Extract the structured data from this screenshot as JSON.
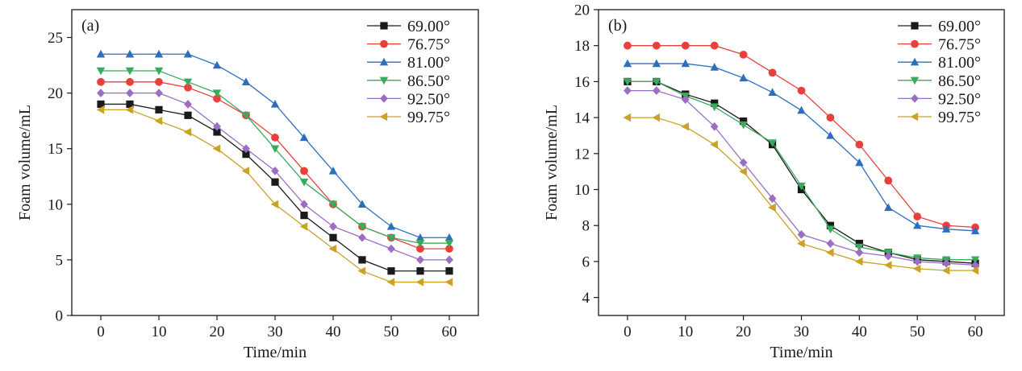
{
  "chart_data": [
    {
      "type": "line",
      "panel_label": "(a)",
      "xlabel": "Time/min",
      "ylabel": "Foam volume/mL",
      "xlim": [
        -5,
        65
      ],
      "ylim": [
        0,
        27.5
      ],
      "xticks": [
        0,
        10,
        20,
        30,
        40,
        50,
        60
      ],
      "yticks": [
        0,
        5,
        10,
        15,
        20,
        25
      ],
      "grid": false,
      "legend_position": "top-right",
      "x": [
        0,
        5,
        10,
        15,
        20,
        25,
        30,
        35,
        40,
        45,
        50,
        55,
        60
      ],
      "series": [
        {
          "name": "69.00°",
          "marker": "square",
          "color": "#1a1a1a",
          "values": [
            19,
            19,
            18.5,
            18,
            16.5,
            14.5,
            12,
            9,
            7,
            5,
            4,
            4,
            4
          ]
        },
        {
          "name": "76.75°",
          "marker": "circle",
          "color": "#e8413c",
          "values": [
            21,
            21,
            21,
            20.5,
            19.5,
            18,
            16,
            13,
            10,
            8,
            7,
            6,
            6
          ]
        },
        {
          "name": "81.00°",
          "marker": "triangle-up",
          "color": "#2e6fbd",
          "values": [
            23.5,
            23.5,
            23.5,
            23.5,
            22.5,
            21,
            19,
            16,
            13,
            10,
            8,
            7,
            7
          ]
        },
        {
          "name": "86.50°",
          "marker": "triangle-down",
          "color": "#3aaa5e",
          "values": [
            22,
            22,
            22,
            21,
            20,
            18,
            15,
            12,
            10,
            8,
            7,
            6.5,
            6.5
          ]
        },
        {
          "name": "92.50°",
          "marker": "diamond",
          "color": "#9b6ec4",
          "values": [
            20,
            20,
            20,
            19,
            17,
            15,
            13,
            10,
            8,
            7,
            6,
            5,
            5
          ]
        },
        {
          "name": "99.75°",
          "marker": "triangle-left",
          "color": "#c9a227",
          "values": [
            18.5,
            18.5,
            17.5,
            16.5,
            15,
            13,
            10,
            8,
            6,
            4,
            3,
            3,
            3
          ]
        }
      ]
    },
    {
      "type": "line",
      "panel_label": "(b)",
      "xlabel": "Time/min",
      "ylabel": "Foam volume/mL",
      "xlim": [
        -5,
        65
      ],
      "ylim": [
        3,
        20
      ],
      "xticks": [
        0,
        10,
        20,
        30,
        40,
        50,
        60
      ],
      "yticks": [
        4,
        6,
        8,
        10,
        12,
        14,
        16,
        18,
        20
      ],
      "grid": false,
      "legend_position": "top-right",
      "x": [
        0,
        5,
        10,
        15,
        20,
        25,
        30,
        35,
        40,
        45,
        50,
        55,
        60
      ],
      "series": [
        {
          "name": "69.00°",
          "marker": "square",
          "color": "#1a1a1a",
          "values": [
            16,
            16,
            15.3,
            14.8,
            13.8,
            12.5,
            10,
            8,
            7,
            6.5,
            6.1,
            6,
            5.9
          ]
        },
        {
          "name": "76.75°",
          "marker": "circle",
          "color": "#e8413c",
          "values": [
            18,
            18,
            18,
            18,
            17.5,
            16.5,
            15.5,
            14,
            12.5,
            10.5,
            8.5,
            8,
            7.9
          ]
        },
        {
          "name": "81.00°",
          "marker": "triangle-up",
          "color": "#2e6fbd",
          "values": [
            17,
            17,
            17,
            16.8,
            16.2,
            15.4,
            14.4,
            13,
            11.5,
            9,
            8,
            7.8,
            7.7
          ]
        },
        {
          "name": "86.50°",
          "marker": "triangle-down",
          "color": "#3aaa5e",
          "values": [
            16,
            16,
            15.2,
            14.6,
            13.6,
            12.6,
            10.2,
            7.8,
            6.8,
            6.5,
            6.2,
            6.1,
            6.1
          ]
        },
        {
          "name": "92.50°",
          "marker": "diamond",
          "color": "#9b6ec4",
          "values": [
            15.5,
            15.5,
            15,
            13.5,
            11.5,
            9.5,
            7.5,
            7,
            6.5,
            6.3,
            6,
            5.9,
            5.8
          ]
        },
        {
          "name": "99.75°",
          "marker": "triangle-left",
          "color": "#c9a227",
          "values": [
            14,
            14,
            13.5,
            12.5,
            11,
            9,
            7,
            6.5,
            6,
            5.8,
            5.6,
            5.5,
            5.5
          ]
        }
      ]
    }
  ]
}
